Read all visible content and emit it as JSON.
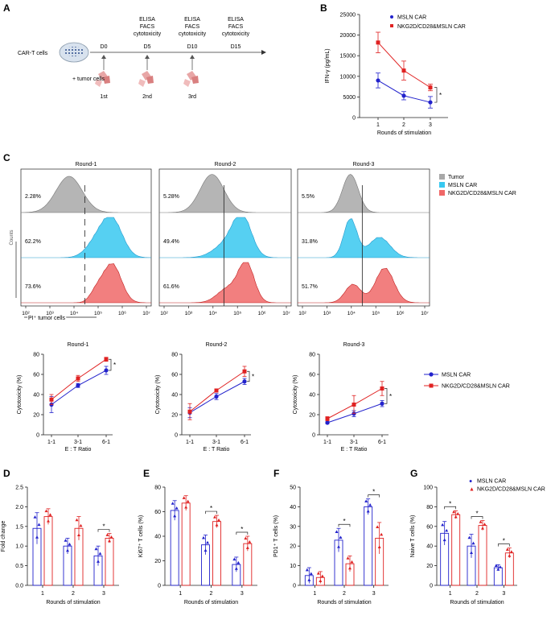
{
  "panel_labels": {
    "A": "A",
    "B": "B",
    "C": "C",
    "D": "D",
    "E": "E",
    "F": "F",
    "G": "G"
  },
  "colors": {
    "mslн": "#2222cc",
    "mslncar": "#2222cc",
    "nkg2d": "#e02222",
    "tumor": "#a8a8a8",
    "mslnfill": "#38c8f0",
    "nkg2dfill": "#f06868"
  },
  "panelA": {
    "cart_label": "CAR-T cells",
    "tumor_label": "+ tumor cells",
    "days": [
      "D0",
      "D5",
      "D10",
      "D15"
    ],
    "assay_lines": [
      "ELISA",
      "FACS",
      "cytotoxicity"
    ],
    "rounds": [
      "1st",
      "2nd",
      "3rd"
    ]
  },
  "chart_data": [
    {
      "id": "B",
      "type": "line",
      "title": "",
      "xlabel": "Rounds of stimulation",
      "ylabel": "IFN-γ (pg/mL)",
      "x": [
        1,
        2,
        3
      ],
      "xticks": [
        "1",
        "2",
        "3"
      ],
      "ylim": [
        0,
        25000
      ],
      "yticks": [
        "0",
        "5000",
        "10000",
        "15000",
        "20000",
        "25000"
      ],
      "series": [
        {
          "name": "MSLN CAR",
          "values": [
            9000,
            5300,
            3700
          ],
          "err": [
            1800,
            1000,
            1400
          ]
        },
        {
          "name": "NKG2D/CD28&MSLN CAR",
          "values": [
            18200,
            11400,
            7300
          ],
          "err": [
            2500,
            2300,
            800
          ]
        }
      ],
      "sig": "*"
    },
    {
      "id": "C-hist",
      "type": "histogram",
      "titles": [
        "Round-1",
        "Round-2",
        "Round-3"
      ],
      "ylabel": "Counts",
      "xlabel": "PI⁺ tumor cells",
      "xticks": [
        "10²",
        "10³",
        "10⁴",
        "10⁵",
        "10⁶",
        "10⁷"
      ],
      "legend": [
        "Tumor",
        "MSLN CAR",
        "NKG2D/CD28&MSLN CAR"
      ],
      "percents": [
        [
          "2.28%",
          "62.2%",
          "73.6%"
        ],
        [
          "5.28%",
          "49.4%",
          "61.6%"
        ],
        [
          "5.5%",
          "31.8%",
          "51.7%"
        ]
      ]
    },
    {
      "id": "C-line",
      "type": "line",
      "titles": [
        "Round-1",
        "Round-2",
        "Round-3"
      ],
      "xlabel": "E : T Ratio",
      "ylabel": "Cytotoxicity (%)",
      "categories": [
        "1-1",
        "3-1",
        "6-1"
      ],
      "ylim": [
        0,
        80
      ],
      "yticks": [
        "0",
        "20",
        "40",
        "60",
        "80"
      ],
      "rounds": [
        {
          "series": [
            {
              "name": "MSLN CAR",
              "values": [
                30,
                49,
                64
              ],
              "err": [
                8,
                2,
                4
              ]
            },
            {
              "name": "NKG2D/CD28&MSLN CAR",
              "values": [
                35,
                56,
                75
              ],
              "err": [
                5,
                3,
                2
              ]
            }
          ]
        },
        {
          "series": [
            {
              "name": "MSLN CAR",
              "values": [
                22,
                38,
                53
              ],
              "err": [
                5,
                3,
                3
              ]
            },
            {
              "name": "NKG2D/CD28&MSLN CAR",
              "values": [
                23,
                44,
                63
              ],
              "err": [
                8,
                1,
                5
              ]
            }
          ]
        },
        {
          "series": [
            {
              "name": "MSLN CAR",
              "values": [
                12,
                21,
                31
              ],
              "err": [
                1,
                3,
                3
              ]
            },
            {
              "name": "NKG2D/CD28&MSLN CAR",
              "values": [
                16,
                30,
                46
              ],
              "err": [
                2,
                9,
                7
              ]
            }
          ]
        }
      ],
      "legend": [
        "MSLN CAR",
        "NKG2D/CD28&MSLN CAR"
      ],
      "sig": "*"
    },
    {
      "id": "D",
      "type": "bar",
      "ylabel": "Fold change",
      "xlabel": "Rounds of stimulation",
      "categories": [
        "1",
        "2",
        "3"
      ],
      "ylim": [
        0,
        2.5
      ],
      "yticks": [
        "0.0",
        "0.5",
        "1.0",
        "1.5",
        "2.0",
        "2.5"
      ],
      "series": [
        {
          "name": "MSLN CAR",
          "values": [
            1.45,
            1.0,
            0.75
          ],
          "err": [
            0.4,
            0.2,
            0.25
          ]
        },
        {
          "name": "NKG2D/CD28&MSLN CAR",
          "values": [
            1.75,
            1.45,
            1.2
          ],
          "err": [
            0.2,
            0.3,
            0.12
          ]
        }
      ],
      "sig_rounds": [
        3
      ]
    },
    {
      "id": "E",
      "type": "bar",
      "ylabel": "Ki67⁺ T cells (%)",
      "xlabel": "Rounds of stimulation",
      "categories": [
        "1",
        "2",
        "3"
      ],
      "ylim": [
        0,
        80
      ],
      "yticks": [
        "0",
        "20",
        "40",
        "60",
        "80"
      ],
      "series": [
        {
          "name": "MSLN CAR",
          "values": [
            61,
            33,
            17
          ],
          "err": [
            8,
            8,
            6
          ]
        },
        {
          "name": "NKG2D/CD28&MSLN CAR",
          "values": [
            67,
            52,
            34
          ],
          "err": [
            6,
            5,
            6
          ]
        }
      ],
      "sig_rounds": [
        2,
        3
      ]
    },
    {
      "id": "F",
      "type": "bar",
      "ylabel": "PD1⁺ T cells (%)",
      "xlabel": "Rounds of stimulation",
      "categories": [
        "1",
        "2",
        "3"
      ],
      "ylim": [
        0,
        50
      ],
      "yticks": [
        "0",
        "10",
        "20",
        "30",
        "40",
        "50"
      ],
      "series": [
        {
          "name": "MSLN CAR",
          "values": [
            5,
            23,
            40
          ],
          "err": [
            4,
            6,
            4
          ]
        },
        {
          "name": "NKG2D/CD28&MSLN CAR",
          "values": [
            4,
            11,
            24
          ],
          "err": [
            3,
            4,
            8
          ]
        }
      ],
      "sig_rounds": [
        2,
        3
      ]
    },
    {
      "id": "G",
      "type": "bar",
      "ylabel": "Naive T cells (%)",
      "xlabel": "Rounds of stimulation",
      "categories": [
        "1",
        "2",
        "3"
      ],
      "ylim": [
        0,
        100
      ],
      "yticks": [
        "0",
        "20",
        "40",
        "60",
        "80",
        "100"
      ],
      "series": [
        {
          "name": "MSLN CAR",
          "values": [
            53,
            40,
            18
          ],
          "err": [
            12,
            12,
            3
          ]
        },
        {
          "name": "NKG2D/CD28&MSLN CAR",
          "values": [
            72,
            61,
            33
          ],
          "err": [
            4,
            5,
            5
          ]
        }
      ],
      "legend": [
        "MSLN CAR",
        "NKG2D/CD28&MSLN CAR"
      ],
      "sig_rounds": [
        1,
        2,
        3
      ]
    }
  ]
}
